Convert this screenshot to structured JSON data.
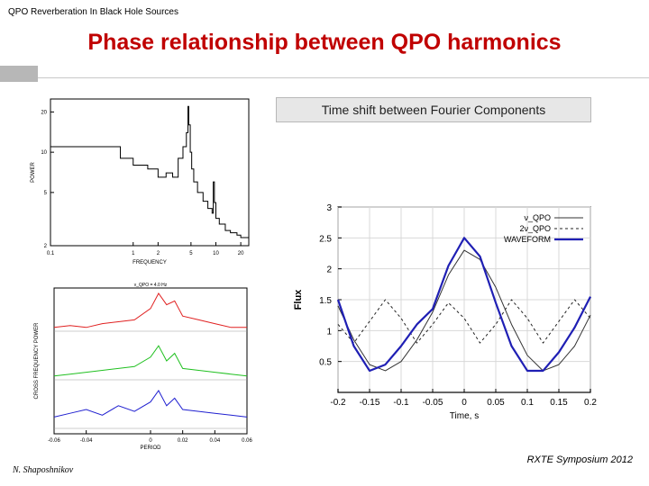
{
  "header": {
    "top_label": "QPO Reverberation In Black Hole Sources"
  },
  "slide_title": "Phase relationship between QPO harmonics",
  "subtitle_box": "Time shift between Fourier Components",
  "footer": {
    "conference": "RXTE Symposium 2012",
    "author": "N. Shaposhnikov"
  },
  "colors": {
    "title": "#c00000",
    "waveform": "#1f1fb4",
    "red": "#e02020",
    "green": "#20c020",
    "blue": "#2020d0"
  },
  "chart_data": [
    {
      "type": "line",
      "ylabel": "POWER",
      "xlabel": "FREQUENCY",
      "xticks": [
        "0.1",
        "1",
        "2",
        "5",
        "10",
        "20"
      ],
      "yticks": [
        "20",
        "10",
        "5",
        "2"
      ],
      "y_log": true,
      "series": [
        {
          "x": [
            0.1,
            0.3,
            0.7,
            1.0,
            1.5,
            2.0,
            2.5,
            3.0,
            3.5,
            4.0,
            4.4,
            4.6,
            4.7,
            4.9,
            5.1,
            5.4,
            6.0,
            7.0,
            8.0,
            9.0,
            9.3,
            9.6,
            10.0,
            11.0,
            13.0,
            15.0,
            18.0,
            20.0,
            25.0
          ],
          "y": [
            11,
            11,
            9,
            8,
            7.5,
            6.5,
            7.0,
            6.5,
            9.0,
            11,
            14,
            22,
            16,
            10,
            7.5,
            6.0,
            5.0,
            4.3,
            3.8,
            3.5,
            6.0,
            4.2,
            3.2,
            2.9,
            2.6,
            2.5,
            2.4,
            2.3,
            2.3
          ]
        }
      ]
    },
    {
      "type": "line",
      "ylabel": "CROSS FREQUENCY POWER",
      "xlabel": "PERIOD",
      "xticks": [
        "-0.06",
        "-0.04",
        "0",
        "0.02",
        "0.04",
        "0.06"
      ],
      "annotation": "ν_QPO = 4.0 Hz",
      "series": [
        {
          "name": "red",
          "x": [
            -0.06,
            -0.05,
            -0.04,
            -0.03,
            -0.02,
            -0.01,
            0.0,
            0.005,
            0.01,
            0.015,
            0.02,
            0.03,
            0.04,
            0.05,
            0.06
          ],
          "y": [
            0.1,
            0.15,
            0.1,
            0.2,
            0.25,
            0.3,
            0.6,
            1.0,
            0.7,
            0.8,
            0.4,
            0.3,
            0.2,
            0.1,
            0.1
          ]
        },
        {
          "name": "green",
          "x": [
            -0.06,
            -0.05,
            -0.04,
            -0.03,
            -0.02,
            -0.01,
            0.0,
            0.005,
            0.01,
            0.015,
            0.02,
            0.03,
            0.04,
            0.05,
            0.06
          ],
          "y": [
            0.1,
            0.15,
            0.2,
            0.25,
            0.3,
            0.35,
            0.6,
            0.9,
            0.5,
            0.7,
            0.3,
            0.25,
            0.2,
            0.15,
            0.1
          ]
        },
        {
          "name": "blue",
          "x": [
            -0.06,
            -0.05,
            -0.04,
            -0.03,
            -0.02,
            -0.01,
            0.0,
            0.005,
            0.01,
            0.015,
            0.02,
            0.03,
            0.04,
            0.05,
            0.06
          ],
          "y": [
            0.3,
            0.4,
            0.5,
            0.35,
            0.6,
            0.45,
            0.7,
            1.0,
            0.6,
            0.8,
            0.5,
            0.45,
            0.4,
            0.35,
            0.3
          ]
        }
      ]
    },
    {
      "type": "line",
      "xlabel": "Time, s",
      "ylabel": "Flux",
      "xlim": [
        -0.2,
        0.2
      ],
      "ylim": [
        0,
        3
      ],
      "xticks": [
        "-0.2",
        "-0.15",
        "-0.1",
        "-0.05",
        "0",
        "0.05",
        "0.1",
        "0.15",
        "0.2"
      ],
      "yticks": [
        "0.5",
        "1",
        "1.5",
        "2",
        "2.5",
        "3"
      ],
      "legend_position": "top-right",
      "series": [
        {
          "name": "ν_QPO",
          "style": "solid-thin",
          "color": "#333333",
          "x": [
            -0.2,
            -0.175,
            -0.15,
            -0.125,
            -0.1,
            -0.075,
            -0.05,
            -0.025,
            0.0,
            0.025,
            0.05,
            0.075,
            0.1,
            0.125,
            0.15,
            0.175,
            0.2
          ],
          "y": [
            1.4,
            0.85,
            0.45,
            0.35,
            0.5,
            0.85,
            1.3,
            1.9,
            2.3,
            2.15,
            1.7,
            1.1,
            0.6,
            0.35,
            0.45,
            0.75,
            1.25
          ]
        },
        {
          "name": "2ν_QPO",
          "style": "dashed",
          "color": "#222222",
          "x": [
            -0.2,
            -0.175,
            -0.15,
            -0.125,
            -0.1,
            -0.075,
            -0.05,
            -0.025,
            0.0,
            0.025,
            0.05,
            0.075,
            0.1,
            0.125,
            0.15,
            0.175,
            0.2
          ],
          "y": [
            1.1,
            0.8,
            1.15,
            1.5,
            1.2,
            0.8,
            1.1,
            1.45,
            1.2,
            0.8,
            1.1,
            1.5,
            1.2,
            0.8,
            1.15,
            1.5,
            1.2
          ]
        },
        {
          "name": "WAVEFORM",
          "style": "solid-thick",
          "color": "#1f1fb4",
          "x": [
            -0.2,
            -0.175,
            -0.15,
            -0.125,
            -0.1,
            -0.075,
            -0.05,
            -0.025,
            0.0,
            0.025,
            0.05,
            0.075,
            0.1,
            0.125,
            0.15,
            0.175,
            0.2
          ],
          "y": [
            1.5,
            0.75,
            0.35,
            0.45,
            0.75,
            1.1,
            1.35,
            2.05,
            2.5,
            2.2,
            1.45,
            0.75,
            0.35,
            0.35,
            0.65,
            1.05,
            1.55
          ]
        }
      ]
    }
  ]
}
